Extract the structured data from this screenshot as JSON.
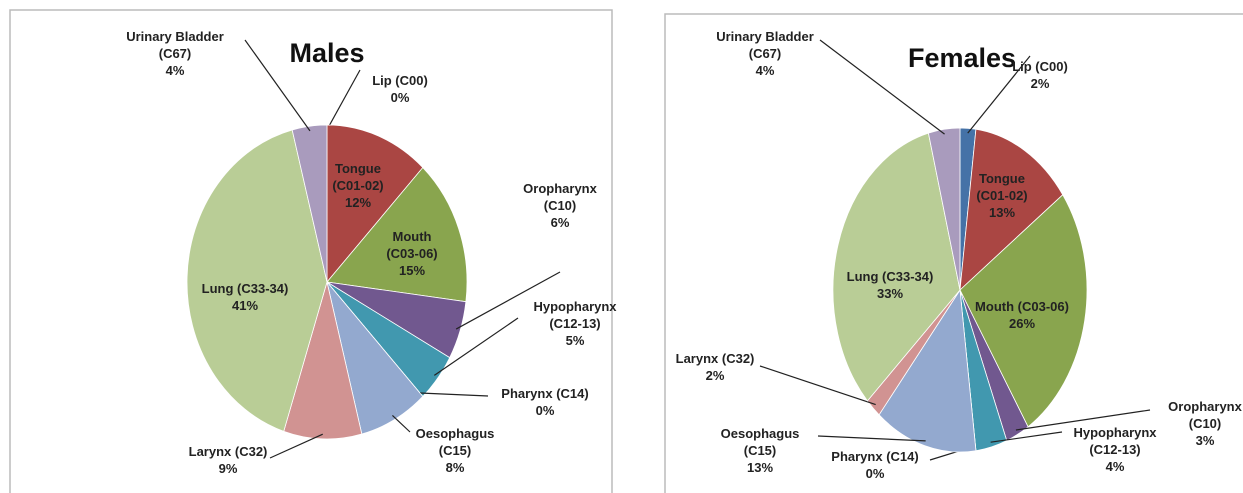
{
  "chart_data": [
    {
      "type": "pie",
      "title": "Males",
      "categories": [
        "Lip (C00)",
        "Tongue (C01-02)",
        "Mouth (C03-06)",
        "Oropharynx (C10)",
        "Hypopharynx (C12-13)",
        "Pharynx (C14)",
        "Oesophagus (C15)",
        "Larynx (C32)",
        "Lung (C33-34)",
        "Urinary Bladder (C67)"
      ],
      "values": [
        0,
        12,
        15,
        6,
        5,
        0,
        8,
        9,
        41,
        4
      ],
      "value_labels": [
        "0%",
        "12%",
        "15%",
        "6%",
        "5%",
        "0%",
        "8%",
        "9%",
        "41%",
        "4%"
      ],
      "colors": [
        "#4572a7",
        "#aa4643",
        "#89a54e",
        "#71588f",
        "#4198af",
        "#db843d",
        "#93a9cf",
        "#d19392",
        "#b9cd96",
        "#a99bbd"
      ]
    },
    {
      "type": "pie",
      "title": "Females",
      "categories": [
        "Lip (C00)",
        "Tongue (C01-02)",
        "Mouth (C03-06)",
        "Oropharynx (C10)",
        "Hypopharynx (C12-13)",
        "Pharynx (C14)",
        "Oesophagus (C15)",
        "Larynx (C32)",
        "Lung (C33-34)",
        "Urinary Bladder (C67)"
      ],
      "values": [
        2,
        13,
        26,
        3,
        4,
        0,
        13,
        2,
        33,
        4
      ],
      "value_labels": [
        "2%",
        "13%",
        "26%",
        "3%",
        "4%",
        "0%",
        "13%",
        "2%",
        "33%",
        "4%"
      ],
      "colors": [
        "#4572a7",
        "#aa4643",
        "#89a54e",
        "#71588f",
        "#4198af",
        "#db843d",
        "#93a9cf",
        "#d19392",
        "#b9cd96",
        "#a99bbd"
      ]
    }
  ]
}
